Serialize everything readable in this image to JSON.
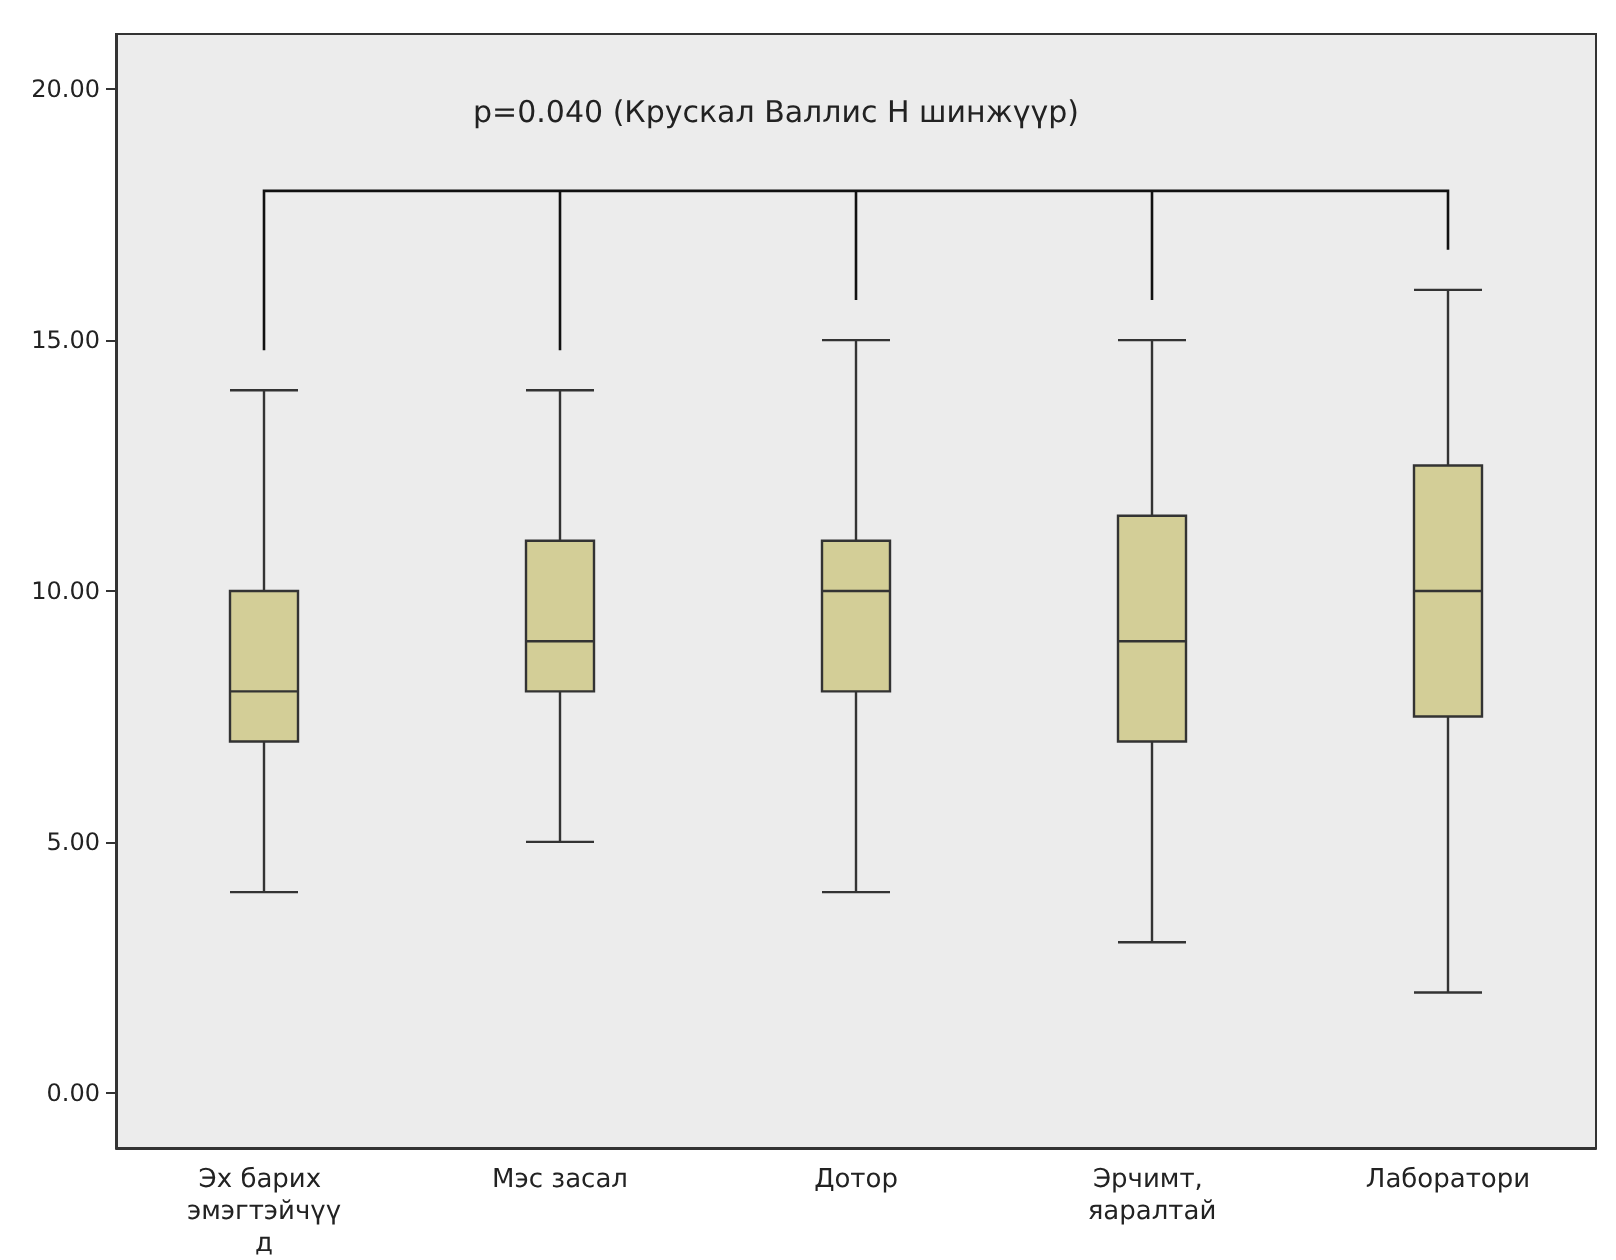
{
  "chart_data": {
    "type": "box",
    "categories": [
      "Эх барих эмэгтэйчүүд",
      "Мэс засал",
      "Дотор",
      "Эрчимт, яаралтай",
      "Лаборатори"
    ],
    "boxes": [
      {
        "low": 4,
        "q1": 7,
        "median": 8,
        "q3": 10,
        "high": 14
      },
      {
        "low": 5,
        "q1": 8,
        "median": 9,
        "q3": 11,
        "high": 14
      },
      {
        "low": 4,
        "q1": 8,
        "median": 10,
        "q3": 11,
        "high": 15
      },
      {
        "low": 3,
        "q1": 7,
        "median": 9,
        "q3": 11.5,
        "high": 15
      },
      {
        "low": 2,
        "q1": 7.5,
        "median": 10,
        "q3": 12.5,
        "high": 16
      }
    ],
    "color": "#d3ce97",
    "ylim": [
      -1.1,
      21.1
    ],
    "yticks": [
      {
        "value": 0,
        "label": "0.00"
      },
      {
        "value": 5,
        "label": "5.00"
      },
      {
        "value": 10,
        "label": "10.00"
      },
      {
        "value": 15,
        "label": "15.00"
      },
      {
        "value": 20,
        "label": "20.00"
      }
    ],
    "grid": false,
    "annotations": [
      "p=0.040 (Крускал Валлис H шинжүүр)"
    ]
  }
}
